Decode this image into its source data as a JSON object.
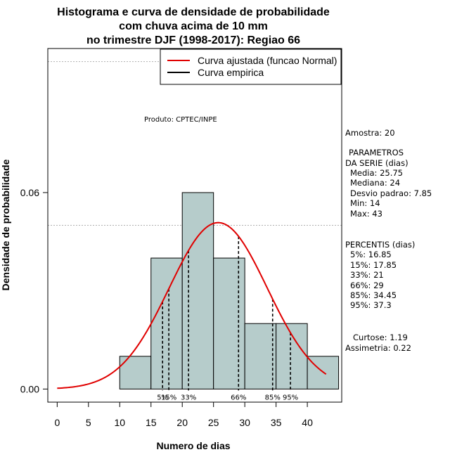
{
  "chart_data": {
    "type": "histogram",
    "title_lines": [
      "Histograma e curva de densidade de probabilidade",
      "com chuva acima de 10 mm",
      "no trimestre DJF (1998-2017): Regiao 66"
    ],
    "xlabel": "Numero de dias",
    "ylabel": "Densidade de probabilidade",
    "xlim": [
      -1.5,
      45.5
    ],
    "ylim": [
      -0.004,
      0.104
    ],
    "x_ticks": [
      0,
      5,
      10,
      15,
      20,
      25,
      30,
      35,
      40
    ],
    "y_ticks": [
      0.0,
      0.06
    ],
    "y_tick_labels": [
      "0.00",
      "0.06"
    ],
    "grid_y": [
      0.06
    ],
    "grid_y_dashed": [
      0.05,
      0.1
    ],
    "bins": [
      {
        "x0": 10,
        "x1": 15,
        "density": 0.01
      },
      {
        "x0": 15,
        "x1": 20,
        "density": 0.04
      },
      {
        "x0": 20,
        "x1": 25,
        "density": 0.06
      },
      {
        "x0": 25,
        "x1": 30,
        "density": 0.04
      },
      {
        "x0": 30,
        "x1": 35,
        "density": 0.02
      },
      {
        "x0": 35,
        "x1": 40,
        "density": 0.02
      },
      {
        "x0": 40,
        "x1": 45,
        "density": 0.01
      }
    ],
    "bar_color": "#b6cccb",
    "curve_color": "#e00000",
    "normal_curve": {
      "mean": 25.75,
      "sd": 7.85,
      "x_from": 0,
      "x_to": 43
    },
    "percentile_lines": [
      {
        "label": "5%",
        "x": 16.85
      },
      {
        "label": "15%",
        "x": 17.85
      },
      {
        "label": "33%",
        "x": 21
      },
      {
        "label": "66%",
        "x": 29
      },
      {
        "label": "85%",
        "x": 34.45
      },
      {
        "label": "95%",
        "x": 37.3
      }
    ],
    "legend": [
      {
        "label": "Curva ajustada (funcao Normal)",
        "color": "#e00000"
      },
      {
        "label": "Curva empirica",
        "color": "#000000"
      }
    ],
    "legend_position": "top-right",
    "annotation": "Produto: CPTEC/INPE"
  },
  "stats_panel": {
    "sample": "Amostra: 20",
    "params_title_1": "PARAMETROS",
    "params_title_2": "DA SERIE (dias)",
    "media": "Media: 25.75",
    "mediana": "Mediana: 24",
    "desvio": "Desvio padrao: 7.85",
    "min": "Min: 14",
    "max": "Max: 43",
    "percentis_title": "PERCENTIS (dias)",
    "p5": "5%: 16.85",
    "p15": "15%: 17.85",
    "p33": "33%: 21",
    "p66": "66%: 29",
    "p85": "85%: 34.45",
    "p95": "95%: 37.3",
    "curtose": "Curtose: 1.19",
    "assimetria": "Assimetria: 0.22"
  }
}
